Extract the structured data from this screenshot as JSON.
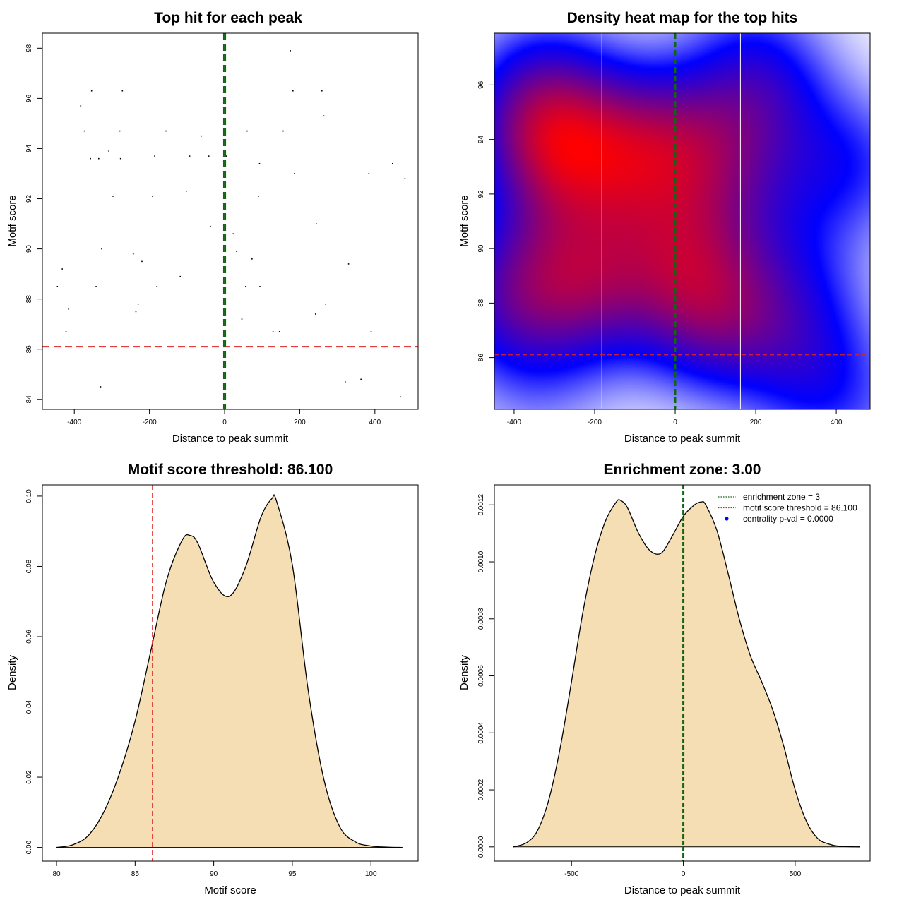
{
  "colors": {
    "threshold": "#dd2222",
    "zone": "#116611",
    "fill": "#f5deb3",
    "heat_low": "#ffffff",
    "heat_mid": "#0000ff",
    "heat_high": "#ff0000",
    "pval": "#0000ff"
  },
  "chart_data": [
    {
      "id": "scatter",
      "type": "scatter",
      "title": "Top hit for each peak",
      "xlabel": "Distance to peak summit",
      "ylabel": "Motif score",
      "xlim": [
        -485,
        515
      ],
      "ylim": [
        83.6,
        98.6
      ],
      "xticks": [
        -400,
        -200,
        0,
        200,
        400
      ],
      "xtick_labels": [
        "-400",
        "-200",
        "0",
        "200",
        "400"
      ],
      "yticks": [
        84,
        86,
        88,
        90,
        92,
        94,
        96,
        98
      ],
      "ytick_labels": [
        "84",
        "86",
        "88",
        "90",
        "92",
        "94",
        "96",
        "98"
      ],
      "threshold": 86.1,
      "zone_lines": [
        -2,
        2
      ],
      "points": [
        [
          -445,
          88.5
        ],
        [
          -432,
          89.2
        ],
        [
          -422,
          86.7
        ],
        [
          -415,
          87.6
        ],
        [
          -383,
          95.7
        ],
        [
          -373,
          94.7
        ],
        [
          -357,
          93.6
        ],
        [
          -354,
          96.3
        ],
        [
          -342,
          88.5
        ],
        [
          -335,
          93.6
        ],
        [
          -330,
          84.5
        ],
        [
          -327,
          90.0
        ],
        [
          -308,
          93.9
        ],
        [
          -297,
          92.1
        ],
        [
          -279,
          94.7
        ],
        [
          -277,
          93.6
        ],
        [
          -272,
          96.3
        ],
        [
          -243,
          89.8
        ],
        [
          -236,
          87.5
        ],
        [
          -230,
          87.8
        ],
        [
          -220,
          89.5
        ],
        [
          -192,
          92.1
        ],
        [
          -186,
          93.7
        ],
        [
          -180,
          88.5
        ],
        [
          -156,
          94.7
        ],
        [
          -118,
          88.9
        ],
        [
          -102,
          92.3
        ],
        [
          -93,
          93.7
        ],
        [
          -62,
          94.5
        ],
        [
          -42,
          93.7
        ],
        [
          -38,
          90.9
        ],
        [
          0,
          87.5
        ],
        [
          5,
          93.7
        ],
        [
          23,
          90.6
        ],
        [
          32,
          89.9
        ],
        [
          46,
          87.2
        ],
        [
          56,
          88.5
        ],
        [
          60,
          94.7
        ],
        [
          73,
          89.6
        ],
        [
          90,
          92.1
        ],
        [
          93,
          93.4
        ],
        [
          94,
          88.5
        ],
        [
          129,
          86.7
        ],
        [
          146,
          86.7
        ],
        [
          156,
          94.7
        ],
        [
          175,
          97.9
        ],
        [
          182,
          96.3
        ],
        [
          186,
          93.0
        ],
        [
          242,
          87.4
        ],
        [
          244,
          91.0
        ],
        [
          259,
          96.3
        ],
        [
          264,
          95.3
        ],
        [
          269,
          87.8
        ],
        [
          321,
          84.7
        ],
        [
          330,
          89.4
        ],
        [
          363,
          84.8
        ],
        [
          384,
          93.0
        ],
        [
          390,
          86.7
        ],
        [
          447,
          93.4
        ],
        [
          468,
          84.1
        ],
        [
          480,
          92.8
        ]
      ]
    },
    {
      "id": "heatmap",
      "type": "heatmap",
      "title": "Density heat map for the top hits",
      "xlabel": "Distance to peak summit",
      "ylabel": "Motif score",
      "xlim": [
        -449,
        484
      ],
      "ylim": [
        84.1,
        97.9
      ],
      "xticks": [
        -400,
        -200,
        0,
        200,
        400
      ],
      "xtick_labels": [
        "-400",
        "-200",
        "0",
        "200",
        "400"
      ],
      "yticks": [
        86,
        88,
        90,
        92,
        94,
        96
      ],
      "ytick_labels": [
        "86",
        "88",
        "90",
        "92",
        "94",
        "96"
      ],
      "threshold": 86.1,
      "zone_lines": [
        -1,
        1
      ],
      "quantile_lines": [
        -182,
        162
      ]
    },
    {
      "id": "score_density",
      "type": "area",
      "title": "Motif score threshold: 86.100",
      "xlabel": "Motif score",
      "ylabel": "Density",
      "xlim": [
        79.1,
        103.0
      ],
      "ylim": [
        -0.0039,
        0.1032
      ],
      "xticks": [
        80,
        85,
        90,
        95,
        100
      ],
      "xtick_labels": [
        "80",
        "85",
        "90",
        "95",
        "100"
      ],
      "yticks": [
        0,
        0.02,
        0.04,
        0.06,
        0.08,
        0.1
      ],
      "ytick_labels": [
        "0.00",
        "0.02",
        "0.04",
        "0.06",
        "0.08",
        "0.10"
      ],
      "threshold": 86.1,
      "curve_x": [
        80,
        81,
        82,
        83,
        84,
        85,
        86,
        87,
        88,
        88.5,
        89,
        90,
        91,
        92,
        93,
        93.7,
        94,
        95,
        96,
        97,
        98,
        99,
        100,
        101,
        102
      ],
      "curve_y": [
        0.0,
        0.0007,
        0.0033,
        0.01,
        0.021,
        0.036,
        0.056,
        0.076,
        0.0875,
        0.0888,
        0.0865,
        0.0755,
        0.0715,
        0.0795,
        0.094,
        0.0993,
        0.0985,
        0.0805,
        0.045,
        0.0195,
        0.006,
        0.0016,
        0.0004,
        0.0001,
        0.0
      ]
    },
    {
      "id": "distance_density",
      "type": "area",
      "title": "Enrichment zone: 3.00",
      "xlabel": "Distance to peak summit",
      "ylabel": "Density",
      "xlim": [
        -845,
        835
      ],
      "ylim": [
        -5e-05,
        0.00127
      ],
      "xticks": [
        -500,
        0,
        500
      ],
      "xtick_labels": [
        "-500",
        "0",
        "500"
      ],
      "yticks": [
        0,
        0.0002,
        0.0004,
        0.0006,
        0.0008,
        0.001,
        0.0012
      ],
      "ytick_labels": [
        "0.0000",
        "0.0002",
        "0.0004",
        "0.0006",
        "0.0008",
        "0.0010",
        "0.0012"
      ],
      "zone_lines": [
        -1.5,
        1.5
      ],
      "curve_x": [
        -760,
        -700,
        -650,
        -600,
        -550,
        -500,
        -450,
        -400,
        -350,
        -300,
        -280,
        -250,
        -200,
        -150,
        -100,
        -50,
        0,
        50,
        80,
        100,
        150,
        200,
        250,
        300,
        350,
        400,
        450,
        500,
        550,
        600,
        650,
        700,
        790
      ],
      "curve_y": [
        0.0,
        1.5e-05,
        6e-05,
        0.00017,
        0.00035,
        0.00058,
        0.00082,
        0.00101,
        0.00114,
        0.00121,
        0.001215,
        0.00119,
        0.0011,
        0.00104,
        0.00103,
        0.00109,
        0.00116,
        0.0012,
        0.00121,
        0.0012,
        0.00111,
        0.00096,
        0.0008,
        0.00067,
        0.00058,
        0.00048,
        0.00035,
        0.0002,
        9e-05,
        3e-05,
        1e-05,
        2e-06,
        0.0
      ],
      "legend": [
        {
          "label": "enrichment zone = 3",
          "style": "dotted",
          "color": "#116611"
        },
        {
          "label": "motif score threshold = 86.100",
          "style": "dotted",
          "color": "#dd2222"
        },
        {
          "label": "centrality p-val = 0.0000",
          "style": "dot",
          "color": "#0000ff"
        }
      ]
    }
  ]
}
